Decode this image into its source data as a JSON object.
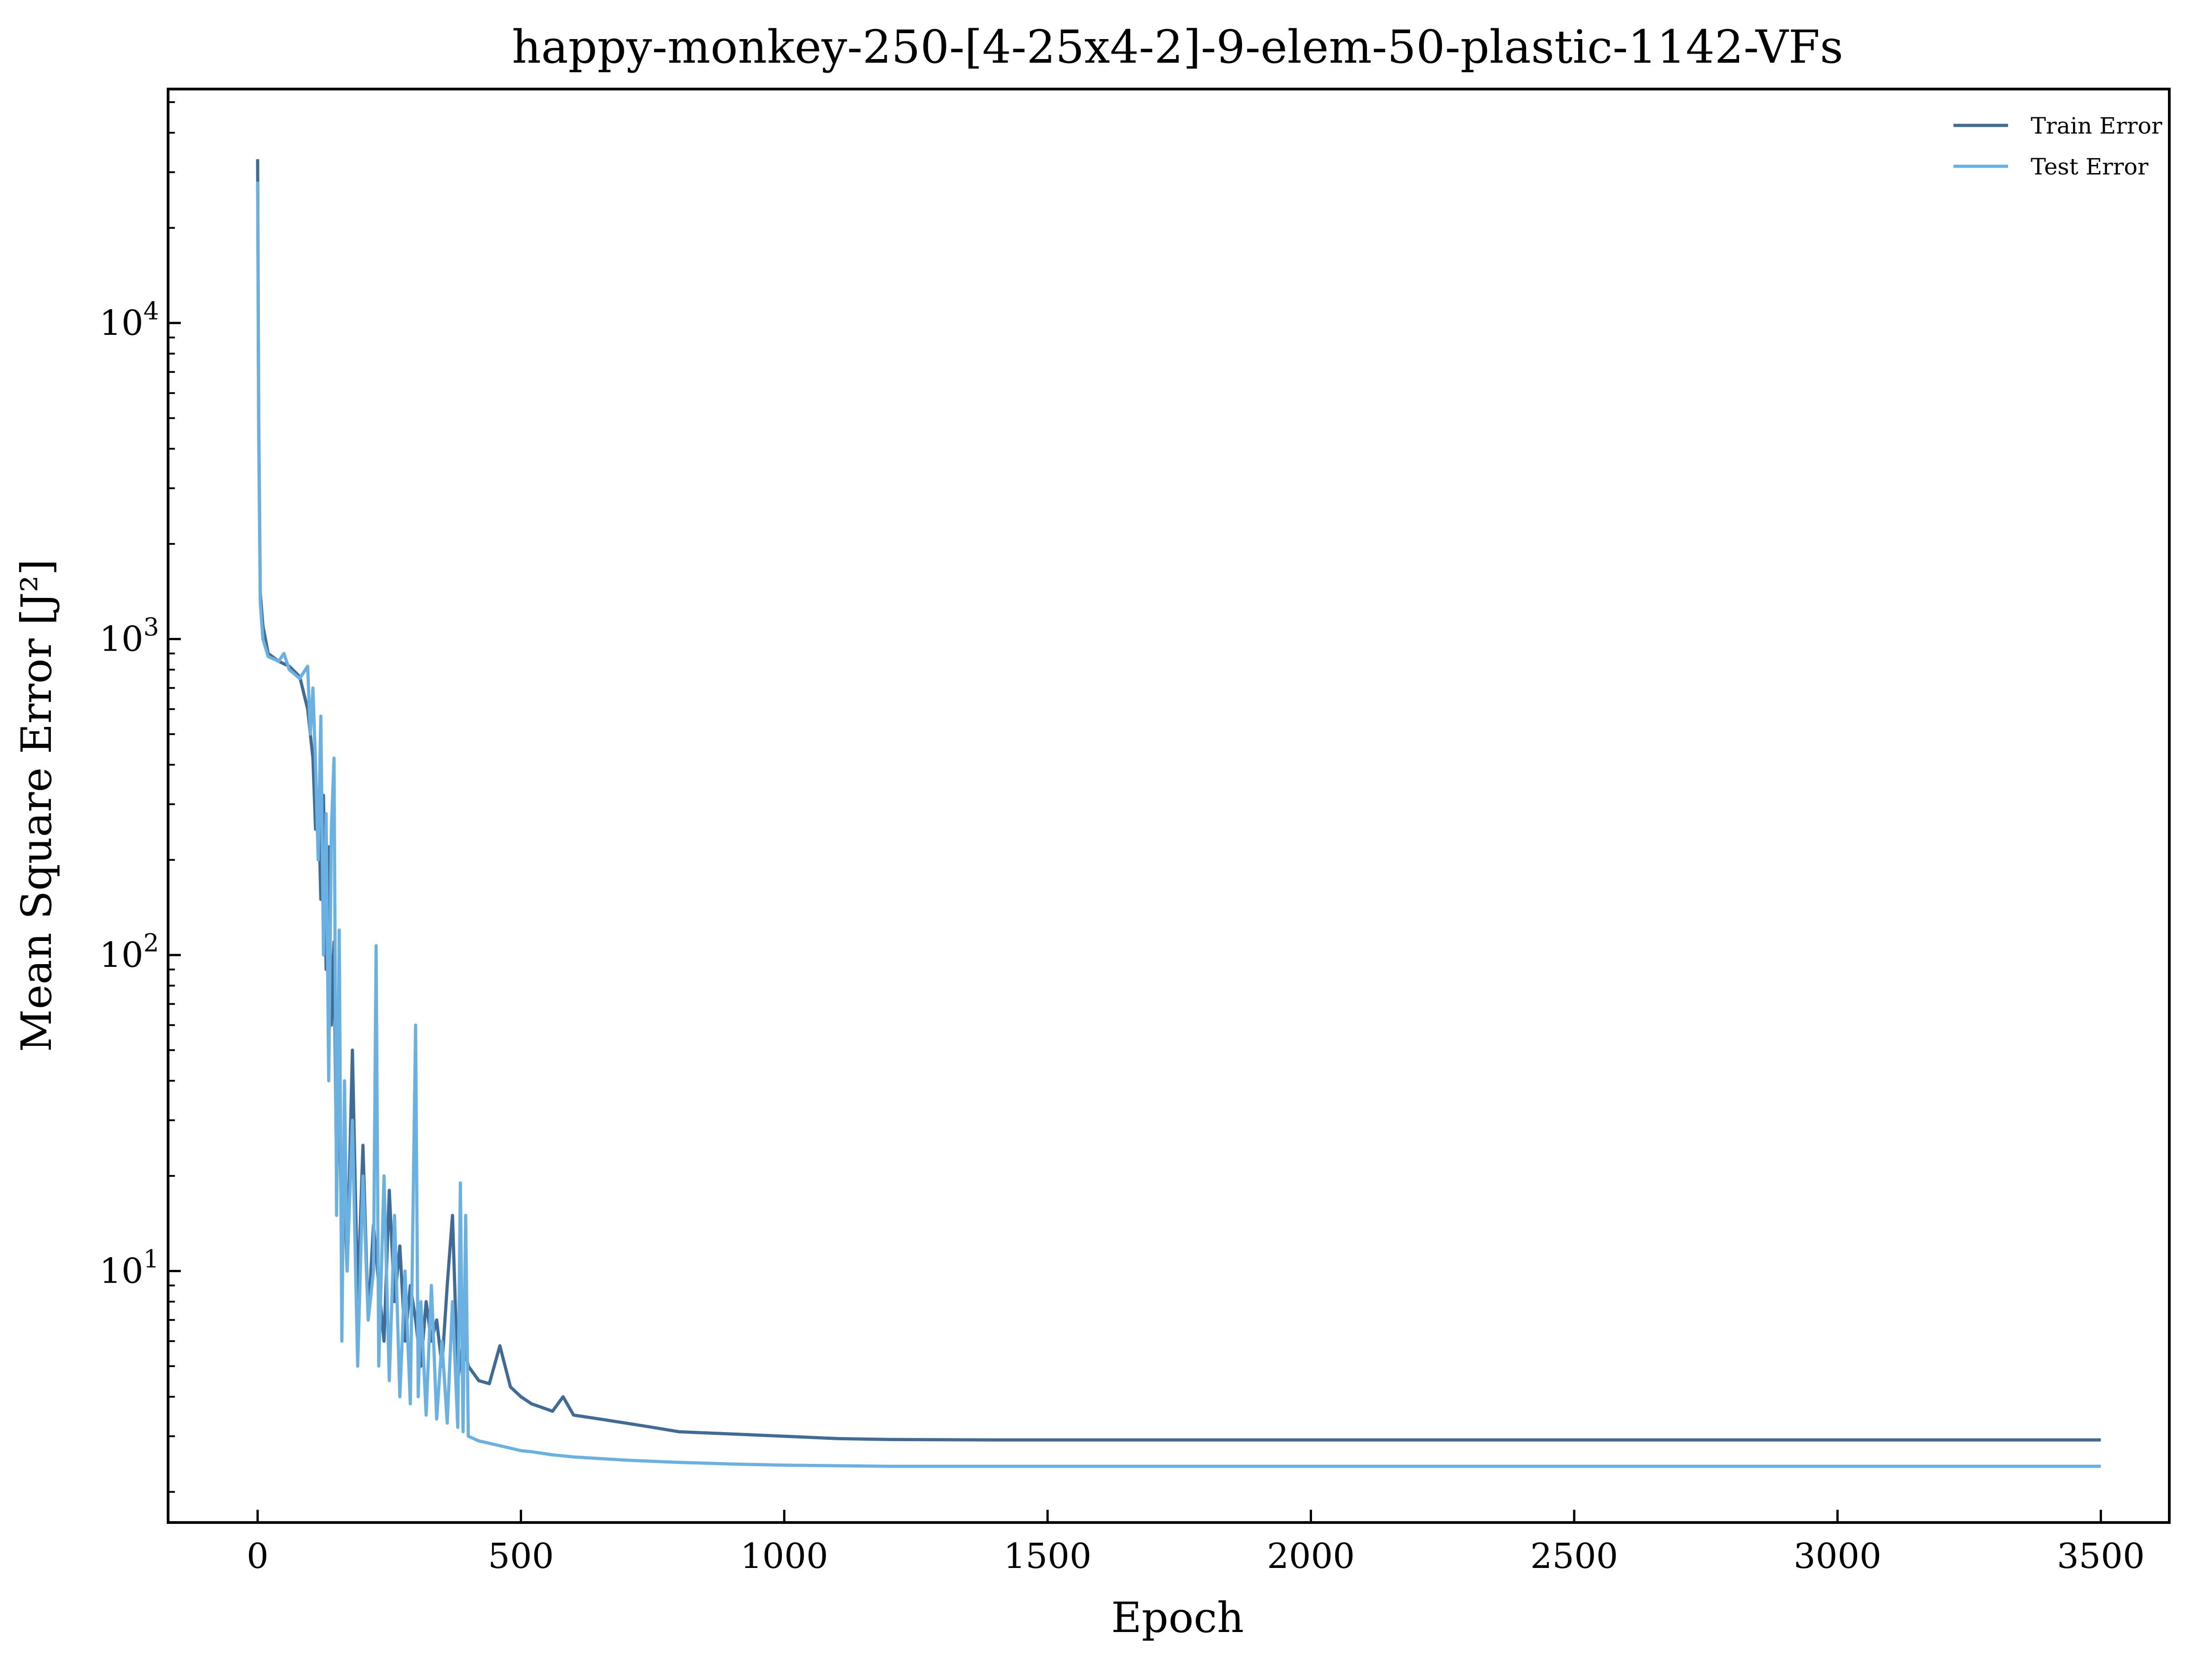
{
  "chart_data": {
    "type": "line",
    "title": "happy-monkey-250-[4-25x4-2]-9-elem-50-plastic-1142-VFs",
    "xlabel": "Epoch",
    "ylabel": "Mean Square Error [J²]",
    "yscale": "log",
    "xlim": [
      -170,
      3630
    ],
    "ylim": [
      1.6,
      55000
    ],
    "x_ticks": [
      0,
      500,
      1000,
      1500,
      2000,
      2500,
      3000,
      3500
    ],
    "y_ticks": [
      {
        "value": 10,
        "base": "10",
        "exp": "1"
      },
      {
        "value": 100,
        "base": "10",
        "exp": "2"
      },
      {
        "value": 1000,
        "base": "10",
        "exp": "3"
      },
      {
        "value": 10000,
        "base": "10",
        "exp": "4"
      }
    ],
    "grid": false,
    "legend_position": "top-right",
    "series": [
      {
        "name": "Train Error",
        "color": "#3f6b96",
        "x": [
          0,
          2,
          5,
          10,
          20,
          40,
          60,
          80,
          95,
          105,
          110,
          115,
          120,
          125,
          130,
          135,
          140,
          145,
          150,
          155,
          160,
          165,
          170,
          180,
          190,
          200,
          210,
          220,
          230,
          240,
          250,
          260,
          270,
          280,
          290,
          300,
          310,
          320,
          330,
          340,
          350,
          360,
          370,
          380,
          390,
          400,
          420,
          440,
          460,
          480,
          500,
          520,
          540,
          560,
          580,
          600,
          650,
          700,
          750,
          800,
          900,
          1000,
          1100,
          1200,
          1400,
          1700,
          2000,
          2500,
          3000,
          3500
        ],
        "y": [
          33000,
          5000,
          1400,
          1100,
          900,
          850,
          820,
          760,
          600,
          420,
          250,
          330,
          150,
          320,
          90,
          220,
          60,
          110,
          20,
          35,
          12,
          18,
          10,
          50,
          8,
          25,
          7,
          14,
          9,
          6,
          18,
          8,
          12,
          6,
          9,
          7,
          5,
          8,
          6,
          7,
          5,
          9,
          15,
          4.5,
          6,
          5,
          4.5,
          4.4,
          5.8,
          4.3,
          4.0,
          3.8,
          3.7,
          3.6,
          4.0,
          3.5,
          3.4,
          3.3,
          3.2,
          3.1,
          3.05,
          3.0,
          2.95,
          2.93,
          2.92,
          2.92,
          2.92,
          2.92,
          2.92,
          2.92
        ]
      },
      {
        "name": "Test Error",
        "color": "#6ab0e0",
        "x": [
          0,
          2,
          5,
          10,
          20,
          40,
          50,
          60,
          80,
          95,
          100,
          105,
          110,
          115,
          120,
          125,
          130,
          135,
          140,
          145,
          150,
          155,
          160,
          165,
          170,
          180,
          190,
          200,
          210,
          220,
          225,
          230,
          240,
          250,
          260,
          270,
          280,
          290,
          300,
          305,
          310,
          320,
          330,
          340,
          350,
          360,
          370,
          380,
          385,
          390,
          395,
          400,
          420,
          440,
          460,
          480,
          500,
          520,
          540,
          560,
          580,
          600,
          650,
          700,
          750,
          800,
          900,
          1000,
          1100,
          1200,
          1400,
          1700,
          2000,
          2500,
          3000,
          3500
        ],
        "y": [
          28000,
          4500,
          1300,
          1000,
          880,
          850,
          900,
          800,
          750,
          820,
          500,
          700,
          400,
          200,
          570,
          100,
          280,
          40,
          250,
          420,
          15,
          120,
          6,
          40,
          10,
          30,
          5,
          20,
          7,
          10,
          107,
          5,
          20,
          4.5,
          15,
          4,
          10,
          3.8,
          60,
          4,
          8,
          3.5,
          9,
          3.4,
          6,
          3.3,
          8,
          3.2,
          19,
          3.1,
          15,
          3.0,
          2.9,
          2.85,
          2.8,
          2.75,
          2.7,
          2.68,
          2.65,
          2.62,
          2.6,
          2.58,
          2.55,
          2.52,
          2.5,
          2.48,
          2.45,
          2.43,
          2.42,
          2.41,
          2.41,
          2.41,
          2.41,
          2.41,
          2.41,
          2.41
        ]
      }
    ]
  }
}
